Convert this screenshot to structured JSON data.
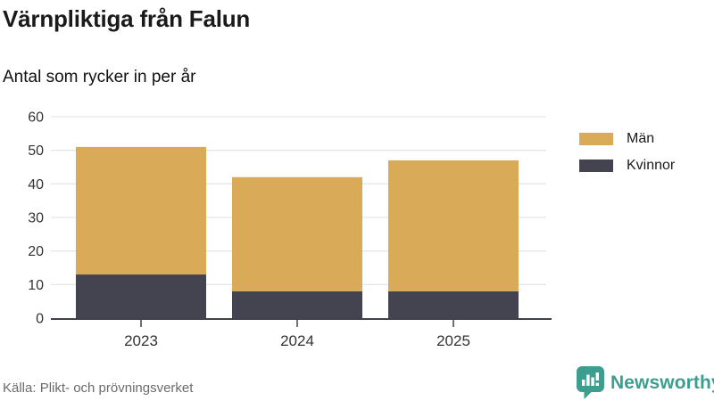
{
  "header": {
    "title": "Värnpliktiga från Falun",
    "subtitle": "Antal som rycker in per år"
  },
  "footer": {
    "source": "Källa: Plikt- och prövningsverket",
    "brand": "Newsworthy"
  },
  "colors": {
    "men": "#d9aa58",
    "women": "#43444f",
    "axis_line": "#3f414c",
    "gridline": "#e6e6e6",
    "tick_text": "#333333",
    "brand_teal": "#3b9e8e"
  },
  "chart_data": {
    "type": "bar",
    "stacked": true,
    "title": "Värnpliktiga från Falun",
    "subtitle": "Antal som rycker in per år",
    "categories": [
      "2023",
      "2024",
      "2025"
    ],
    "series": [
      {
        "name": "Män",
        "color": "#d9aa58",
        "values": [
          38,
          34,
          39
        ]
      },
      {
        "name": "Kvinnor",
        "color": "#43444f",
        "values": [
          13,
          8,
          8
        ]
      }
    ],
    "stack_bottom_to_top": [
      "Kvinnor",
      "Män"
    ],
    "totals": [
      51,
      42,
      47
    ],
    "xlabel": "",
    "ylabel": "",
    "ylim": [
      0,
      60
    ],
    "yticks": [
      0,
      10,
      20,
      30,
      40,
      50,
      60
    ],
    "grid": true,
    "legend_position": "right"
  }
}
